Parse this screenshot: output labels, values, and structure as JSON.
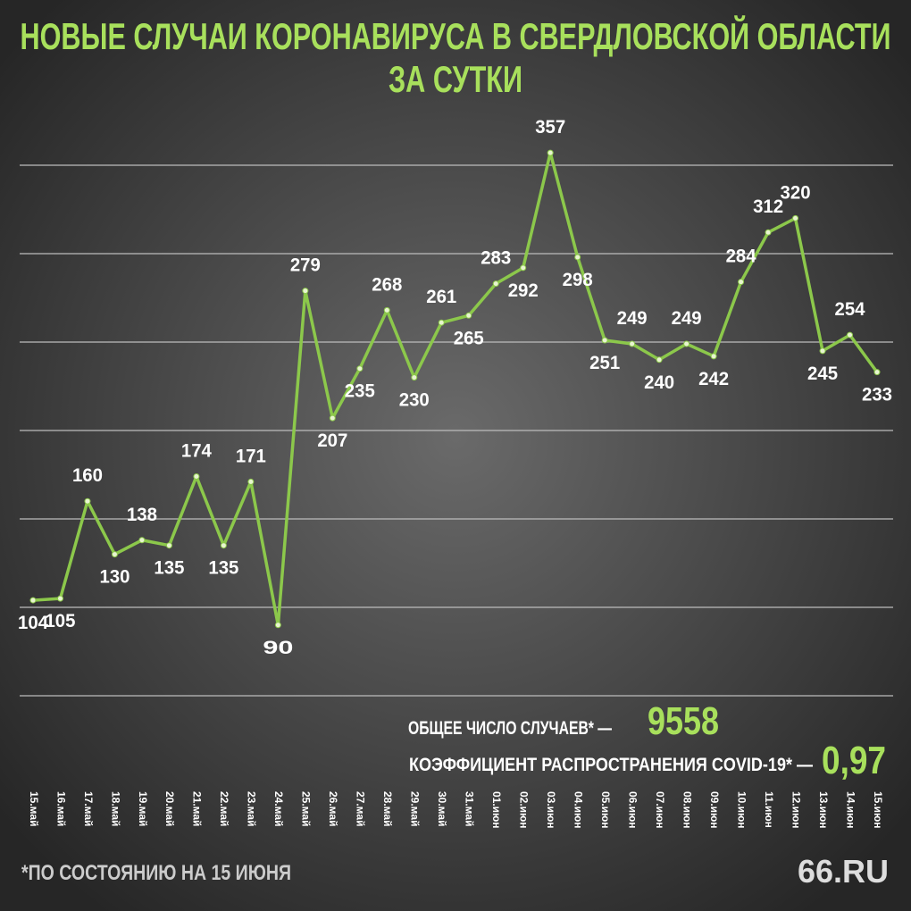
{
  "chart_data": {
    "type": "line",
    "title": "НОВЫЕ СЛУЧАИ КОРОНАВИРУСА В СВЕРДЛОВСКОЙ ОБЛАСТИ",
    "subtitle": "ЗА СУТКИ",
    "categories": [
      "15.май",
      "16.май",
      "17.май",
      "18.май",
      "19.май",
      "20.май",
      "21.май",
      "22.май",
      "23.май",
      "24.май",
      "25.май",
      "26.май",
      "27.май",
      "28.май",
      "29.май",
      "30.май",
      "31.май",
      "01.июн",
      "02.июн",
      "03.июн",
      "04.июн",
      "05.июн",
      "06.июн",
      "07.июн",
      "08.июн",
      "09.июн",
      "10.июн",
      "11.июн",
      "12.июн",
      "13.июн",
      "14.июн",
      "15.июн"
    ],
    "series": [
      {
        "name": "Новые случаи",
        "color": "#8cc84b",
        "values": [
          104,
          105,
          160,
          130,
          138,
          135,
          174,
          135,
          171,
          90,
          279,
          207,
          235,
          268,
          230,
          261,
          265,
          283,
          292,
          357,
          298,
          251,
          249,
          240,
          249,
          242,
          284,
          312,
          320,
          245,
          254,
          233
        ]
      }
    ],
    "ylim": [
      50,
      370
    ],
    "yticks": [
      50,
      100,
      150,
      200,
      250,
      300,
      350
    ],
    "grid": true,
    "annotations": [
      {
        "label": "ОБЩЕЕ ЧИСЛО СЛУЧАЕВ* —",
        "value": "9558"
      },
      {
        "label": "КОЭФФИЦИЕНТ РАСПРОСТРАНЕНИЯ COVID-19* —",
        "value": "0,97"
      }
    ],
    "footnote": "*ПО СОСТОЯНИЮ НА 15 ИЮНЯ",
    "source": "66.RU"
  }
}
